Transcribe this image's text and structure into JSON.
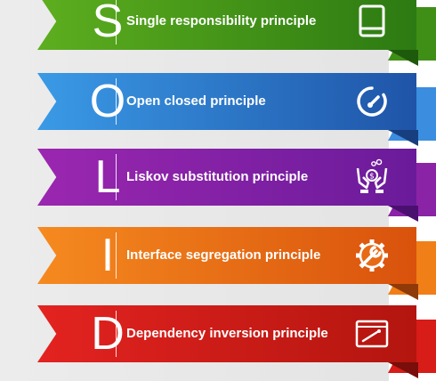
{
  "principles": [
    {
      "letter": "S",
      "label": "Single responsibility principle",
      "icon": "book-icon",
      "color_start": "#5dae1f",
      "color_end": "#2c7a12",
      "tail_color": "#3f8f17",
      "fold_color": "#1e5a0c"
    },
    {
      "letter": "O",
      "label": "Open closed principle",
      "icon": "speedometer-icon",
      "color_start": "#3a9ae6",
      "color_end": "#1f54a8",
      "tail_color": "#3b8de0",
      "fold_color": "#173f80"
    },
    {
      "letter": "L",
      "label": "Liskov substitution principle",
      "icon": "hands-coin-icon",
      "color_start": "#9b27b0",
      "color_end": "#6a1b9a",
      "tail_color": "#8a23a6",
      "fold_color": "#4a1070"
    },
    {
      "letter": "I",
      "label": "Interface segregation principle",
      "icon": "gear-wrench-icon",
      "color_start": "#f58a1f",
      "color_end": "#d9520c",
      "tail_color": "#f07f18",
      "fold_color": "#8f3a08"
    },
    {
      "letter": "D",
      "label": "Dependency inversion principle",
      "icon": "browser-window-icon",
      "color_start": "#e32320",
      "color_end": "#b3150f",
      "tail_color": "#d81c18",
      "fold_color": "#7a0e0b"
    }
  ]
}
